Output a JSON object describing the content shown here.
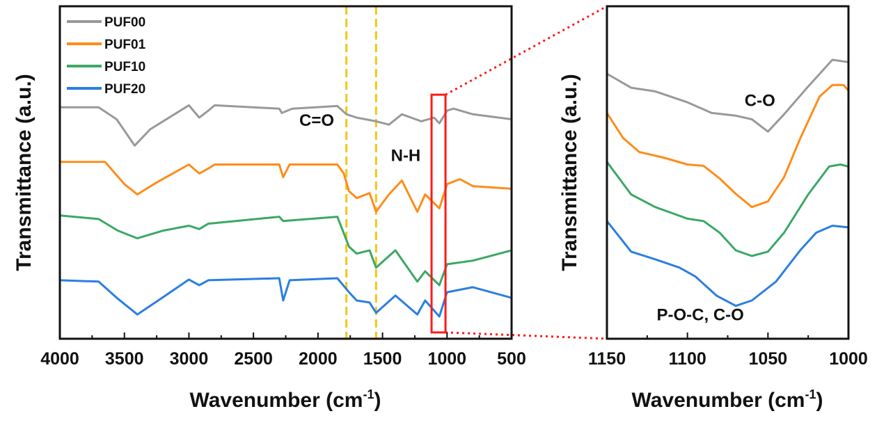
{
  "chart_data": [
    {
      "type": "line",
      "title": "",
      "xlabel": "Wavenumber (cm",
      "xlabel_sup": "-1",
      "xlabel_close": ")",
      "ylabel": "Transmittance (a.u.)",
      "xlim": [
        4000,
        500
      ],
      "ylim": [
        0,
        100
      ],
      "xticks": [
        4000,
        3500,
        3000,
        2500,
        2000,
        1500,
        1000,
        500
      ],
      "xtick_labels": [
        "4000",
        "3500",
        "3000",
        "2500",
        "2000",
        "1500",
        "1000",
        "500"
      ],
      "legend_position": "top-left",
      "series": [
        {
          "name": "PUF00",
          "color": "#999999",
          "x": [
            4000,
            3700,
            3560,
            3420,
            3300,
            3000,
            2920,
            2850,
            2800,
            2300,
            2280,
            2200,
            1850,
            1780,
            1700,
            1550,
            1450,
            1350,
            1200,
            1100,
            1060,
            1000,
            950,
            800,
            500
          ],
          "y": [
            69.6,
            69.6,
            66,
            58.1,
            63,
            70.2,
            66.5,
            68.6,
            70.2,
            69.2,
            67.9,
            69.2,
            70,
            67.5,
            66.5,
            65.4,
            64.4,
            67.5,
            65.4,
            66.5,
            64.8,
            68.6,
            69.2,
            67.5,
            66
          ]
        },
        {
          "name": "PUF01",
          "color": "#ff8c1a",
          "x": [
            4000,
            3650,
            3500,
            3400,
            3250,
            3000,
            2920,
            2850,
            2800,
            2300,
            2270,
            2220,
            1850,
            1800,
            1760,
            1700,
            1600,
            1550,
            1450,
            1350,
            1230,
            1170,
            1060,
            1000,
            900,
            800,
            500
          ],
          "y": [
            53.2,
            53.2,
            46.5,
            43.4,
            47,
            52.4,
            49.7,
            51.2,
            52.4,
            52.4,
            48.6,
            52.4,
            52.4,
            49.7,
            44.4,
            42.3,
            43.8,
            38.2,
            43.4,
            47.6,
            38.2,
            43.4,
            39.2,
            46.5,
            48,
            45.9,
            45.1
          ]
        },
        {
          "name": "PUF10",
          "color": "#3aa864",
          "x": [
            4000,
            3700,
            3550,
            3400,
            3200,
            3000,
            2920,
            2850,
            2300,
            2270,
            1850,
            1760,
            1700,
            1600,
            1550,
            1400,
            1230,
            1170,
            1060,
            1000,
            800,
            500
          ],
          "y": [
            37.1,
            36,
            32.5,
            30.2,
            32.5,
            34,
            33,
            34.6,
            36.7,
            35.4,
            36.7,
            27.7,
            25.6,
            26.6,
            21.4,
            26.6,
            17.2,
            20.3,
            16.1,
            22.4,
            23.5,
            26.6
          ]
        },
        {
          "name": "PUF20",
          "color": "#2a7fe0",
          "x": [
            4000,
            3700,
            3550,
            3400,
            3200,
            3000,
            2920,
            2850,
            2300,
            2270,
            2220,
            1850,
            1760,
            1700,
            1600,
            1550,
            1400,
            1230,
            1170,
            1060,
            1000,
            800,
            500
          ],
          "y": [
            17.6,
            17.2,
            12,
            7.3,
            12.5,
            17.8,
            16.1,
            17.6,
            18.2,
            11.5,
            17.6,
            18.2,
            14,
            11.5,
            10.9,
            7.8,
            13,
            7.3,
            11.5,
            6.7,
            14,
            15.5,
            12.3
          ]
        }
      ],
      "annotations": [
        {
          "text": "C=O",
          "x": 2010,
          "y": 64
        },
        {
          "text": "N-H",
          "x": 1320,
          "y": 53.5
        }
      ],
      "reference_lines": [
        1780,
        1550
      ],
      "reference_line_color": "#f5c518",
      "highlight_region": {
        "x": [
          1120,
          1012
        ],
        "y": [
          1.9,
          73.4
        ],
        "color": "#ff1a1a"
      }
    },
    {
      "type": "line",
      "title": "",
      "xlabel": "Wavenumber (cm",
      "xlabel_sup": "-1",
      "xlabel_close": ")",
      "ylabel": "Transmittance (a.u.)",
      "xlim": [
        1150,
        1000
      ],
      "ylim": [
        0,
        100
      ],
      "xticks": [
        1150,
        1100,
        1050,
        1000
      ],
      "xtick_labels": [
        "1150",
        "1100",
        "1050",
        "1000"
      ],
      "series": [
        {
          "name": "PUF00",
          "color": "#999999",
          "x": [
            1150,
            1135,
            1120,
            1100,
            1085,
            1070,
            1060,
            1050,
            1040,
            1025,
            1010,
            1000
          ],
          "y": [
            79.7,
            75.5,
            74.4,
            71.1,
            67.9,
            67.1,
            66,
            62.3,
            67.5,
            75.9,
            83.9,
            83.2
          ]
        },
        {
          "name": "PUF01",
          "color": "#ff8c1a",
          "x": [
            1150,
            1140,
            1130,
            1115,
            1100,
            1090,
            1080,
            1070,
            1060,
            1050,
            1040,
            1030,
            1018,
            1010,
            1003,
            1000
          ],
          "y": [
            67.9,
            60.4,
            56.2,
            54.5,
            52.4,
            52,
            48.2,
            43.6,
            39.6,
            41.3,
            48.6,
            60.2,
            72.8,
            76.3,
            76.3,
            74.6
          ]
        },
        {
          "name": "PUF10",
          "color": "#3aa864",
          "x": [
            1150,
            1135,
            1120,
            1100,
            1090,
            1080,
            1070,
            1060,
            1050,
            1040,
            1025,
            1012,
            1005,
            1000
          ],
          "y": [
            53.2,
            43.4,
            39.6,
            36.1,
            35.4,
            31.9,
            26.6,
            24.9,
            26.2,
            31.9,
            43.4,
            51.8,
            52.4,
            51.8
          ]
        },
        {
          "name": "PUF20",
          "color": "#2a7fe0",
          "x": [
            1150,
            1135,
            1120,
            1105,
            1095,
            1082,
            1070,
            1060,
            1045,
            1030,
            1020,
            1010,
            1000
          ],
          "y": [
            35.4,
            26.2,
            23.9,
            21.4,
            18.7,
            13,
            9.9,
            11.5,
            17.2,
            26.6,
            31.9,
            34,
            33.5
          ]
        }
      ],
      "annotations": [
        {
          "text": "C-O",
          "x": 1055,
          "y": 70
        },
        {
          "text": "P-O-C, C-O",
          "x": 1092,
          "y": 5.5
        }
      ]
    }
  ]
}
